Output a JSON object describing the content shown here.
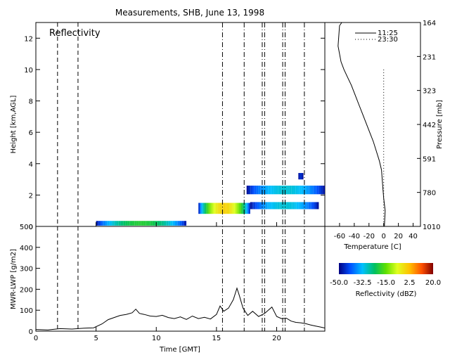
{
  "title": "Measurements, SHB, June 13, 1998",
  "colors": {
    "background": "#ffffff",
    "axes": "#000000"
  },
  "chart_data": [
    {
      "type": "heatmap",
      "panel_label": "Reflectivity",
      "ylabel": "Height [km,AGL]",
      "xlim": [
        0,
        24
      ],
      "ylim": [
        0,
        13
      ],
      "yticks": [
        "0",
        "2",
        "4",
        "6",
        "8",
        "10",
        "12"
      ],
      "vertical_lines": [
        {
          "x": 1.8,
          "style": "dashed"
        },
        {
          "x": 3.5,
          "style": "dashed"
        },
        {
          "x": 15.5,
          "style": "dash-dot"
        },
        {
          "x": 17.3,
          "style": "dash-dot"
        },
        {
          "x": 18.8,
          "style": "dash-dot"
        },
        {
          "x": 19.0,
          "style": "dash-dot"
        },
        {
          "x": 20.5,
          "style": "dash-dot"
        },
        {
          "x": 20.7,
          "style": "dash-dot"
        },
        {
          "x": 22.3,
          "style": "dash-dot"
        }
      ],
      "cloud_layers": [
        {
          "x0": 5.0,
          "x1": 12.5,
          "base_km": 0.05,
          "top_km": 0.35,
          "max_dbz": -20
        },
        {
          "x0": 13.5,
          "x1": 17.8,
          "base_km": 0.8,
          "top_km": 1.5,
          "max_dbz": 0
        },
        {
          "x0": 17.8,
          "x1": 23.5,
          "base_km": 1.1,
          "top_km": 1.55,
          "max_dbz": -30
        },
        {
          "x0": 17.5,
          "x1": 24.0,
          "base_km": 2.05,
          "top_km": 2.6,
          "max_dbz": -30
        },
        {
          "x0": 21.8,
          "x1": 22.2,
          "base_km": 3.0,
          "top_km": 3.4,
          "max_dbz": -45
        }
      ]
    },
    {
      "type": "line",
      "xlabel": "Time [GMT]",
      "ylabel": "MWR-LWP [g/m2]",
      "xlim": [
        0,
        24
      ],
      "ylim": [
        0,
        500
      ],
      "xticks": [
        "0",
        "5",
        "10",
        "15",
        "20"
      ],
      "yticks": [
        "0",
        "100",
        "200",
        "300",
        "400",
        "500"
      ],
      "series": [
        {
          "x": [
            0,
            1,
            2,
            3,
            4,
            4.8,
            5.5,
            6,
            6.5,
            7,
            7.5,
            8,
            8.3,
            8.6,
            9,
            9.5,
            10,
            10.5,
            11,
            11.5,
            12,
            12.5,
            13,
            13.5,
            14,
            14.5,
            15,
            15.3,
            15.6,
            16,
            16.4,
            16.7,
            16.9,
            17.2,
            17.6,
            18,
            18.5,
            19,
            19.3,
            19.6,
            20,
            20.4,
            20.8,
            21.2,
            21.6,
            22,
            22.4,
            22.8,
            23.2,
            23.6,
            24
          ],
          "y": [
            8,
            6,
            12,
            10,
            14,
            16,
            35,
            55,
            65,
            75,
            80,
            88,
            105,
            85,
            80,
            72,
            70,
            76,
            65,
            60,
            68,
            56,
            72,
            60,
            66,
            58,
            80,
            120,
            95,
            110,
            150,
            205,
            170,
            110,
            75,
            95,
            70,
            85,
            100,
            115,
            70,
            60,
            62,
            48,
            42,
            40,
            36,
            30,
            25,
            20,
            15
          ]
        }
      ]
    },
    {
      "type": "line",
      "xlabel": "Temperature [C]",
      "ylabel": "Pressure [mb]",
      "xlim": [
        -80,
        50
      ],
      "ylim": [
        13,
        0
      ],
      "xticks": [
        "-60",
        "-40",
        "-20",
        "0",
        "20",
        "40"
      ],
      "yticks": [
        "164",
        "231",
        "323",
        "442",
        "591",
        "780",
        "1010"
      ],
      "series": [
        {
          "name": "11:25",
          "style": "solid",
          "x": [
            -57,
            -60,
            -62,
            -58,
            -54,
            -49,
            -44,
            -39,
            -34,
            -29,
            -24,
            -19,
            -14,
            -10,
            -6,
            -3,
            -2,
            -1,
            0,
            2,
            1
          ],
          "y": [
            13,
            12.8,
            11.5,
            10.5,
            10.0,
            9.5,
            9.0,
            8.4,
            7.8,
            7.2,
            6.6,
            6.0,
            5.4,
            4.8,
            4.2,
            3.6,
            3.0,
            2.4,
            1.8,
            1.0,
            0
          ]
        },
        {
          "name": "23:30",
          "style": "dotted",
          "x": [
            0,
            0,
            0,
            0
          ],
          "y": [
            10,
            6,
            3,
            0
          ]
        }
      ]
    }
  ],
  "colorbar": {
    "label": "Reflectivity (dBZ)",
    "ticks": [
      "-50.0",
      "-32.5",
      "-15.0",
      "2.5",
      "20.0"
    ],
    "range": [
      -50,
      20
    ]
  }
}
